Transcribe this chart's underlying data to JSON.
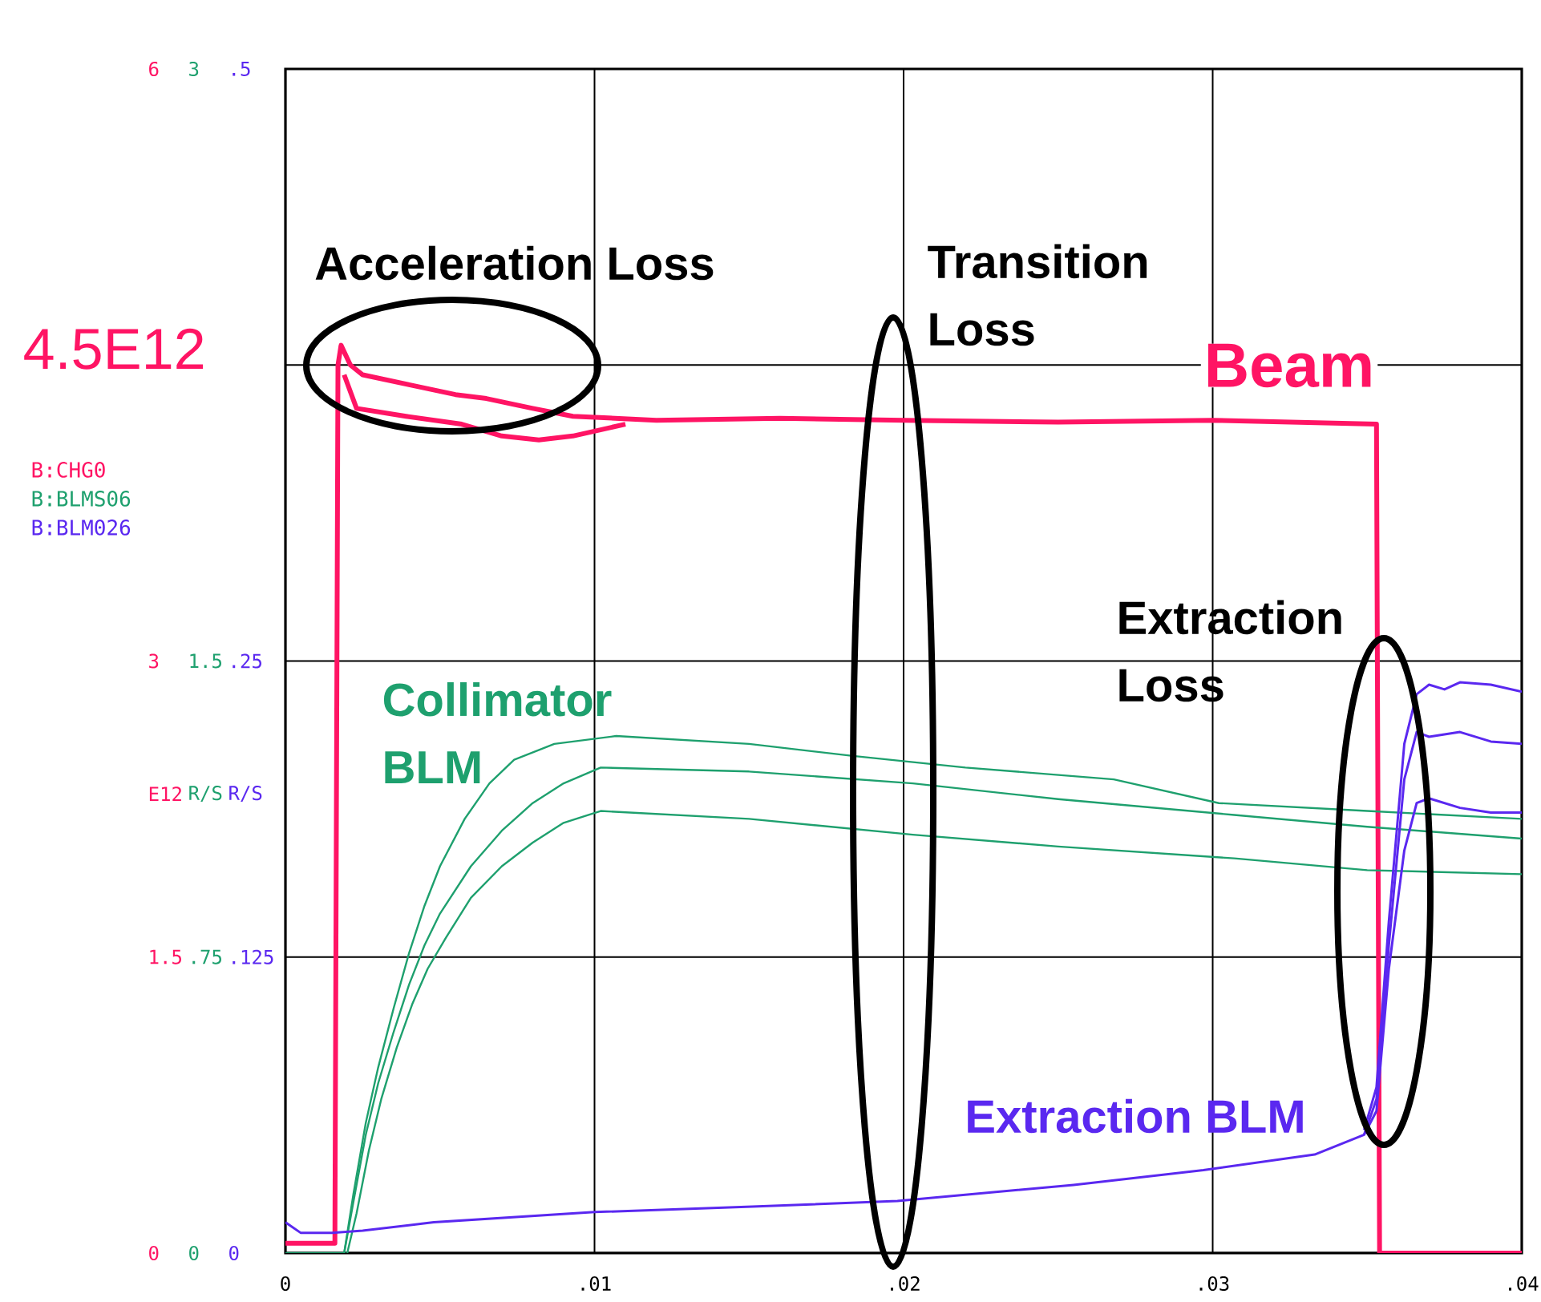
{
  "chart_data": {
    "type": "line",
    "xlim": [
      0,
      0.04
    ],
    "xticks": [
      0,
      {
        "value": 0.01,
        "label": ".01"
      },
      {
        "value": 0.02,
        "label": ".02"
      },
      {
        "value": 0.03,
        "label": ".03"
      },
      {
        "value": 0.04,
        "label": ".04"
      }
    ],
    "ylim": [
      0,
      6
    ],
    "yticks": [
      0,
      1.5,
      3,
      6
    ],
    "y2lim": [
      0,
      3
    ],
    "y2ticks": [
      0,
      {
        "value": 0.75,
        "label": ".75"
      },
      1.5,
      3
    ],
    "y3lim": [
      0,
      0.5
    ],
    "y3ticks": [
      0,
      {
        "value": 0.125,
        "label": ".125"
      },
      {
        "value": 0.25,
        "label": ".25"
      },
      {
        "value": 0.5,
        "label": ".5"
      }
    ],
    "ylabel": "E12",
    "y2label": "R/S",
    "y3label": "R/S",
    "grid": true,
    "legend": "left",
    "ref_lines": [
      {
        "axis": "y",
        "value": 4.5,
        "label": "4.5E12"
      }
    ],
    "series": [
      {
        "name": "B:CHG0",
        "color": "#ff1464",
        "x": [
          0,
          0.0016,
          0.0017,
          0.0018,
          0.0021,
          0.0025,
          0.004,
          0.0055,
          0.0065,
          0.008,
          0.0093,
          0.012,
          0.016,
          0.02,
          0.025,
          0.03,
          0.0353,
          0.0354,
          0.04
        ],
        "values": [
          0.05,
          0.05,
          4.5,
          4.6,
          4.5,
          4.45,
          4.4,
          4.35,
          4.33,
          4.28,
          4.24,
          4.22,
          4.23,
          4.22,
          4.21,
          4.22,
          4.2,
          0,
          0
        ]
      },
      {
        "color": "#ff1464",
        "x": [
          0.0019,
          0.0023,
          0.0039,
          0.0057,
          0.007,
          0.0082,
          0.0093,
          0.011
        ],
        "values": [
          4.45,
          4.28,
          4.24,
          4.2,
          4.14,
          4.12,
          4.14,
          4.2
        ]
      },
      {
        "name": "B:BLMS06",
        "color": "#1ea06e",
        "axis": "y2",
        "x": [
          0,
          0.0019,
          0.0022,
          0.0026,
          0.003,
          0.0035,
          0.004,
          0.0045,
          0.005,
          0.006,
          0.007,
          0.008,
          0.009,
          0.0102,
          0.015,
          0.0203,
          0.025,
          0.0307,
          0.035,
          0.04
        ],
        "values": [
          0,
          0,
          0.13,
          0.3,
          0.43,
          0.56,
          0.68,
          0.78,
          0.86,
          0.98,
          1.07,
          1.14,
          1.19,
          1.23,
          1.22,
          1.19,
          1.15,
          1.11,
          1.08,
          1.05
        ]
      },
      {
        "color": "#1ea06e",
        "axis": "y2",
        "x": [
          0.0019,
          0.0022,
          0.0026,
          0.003,
          0.0035,
          0.004,
          0.0045,
          0.005,
          0.0058,
          0.0066,
          0.0074,
          0.0087,
          0.0107,
          0.015,
          0.0183,
          0.022,
          0.0268,
          0.0302,
          0.035,
          0.04
        ],
        "values": [
          0,
          0.15,
          0.33,
          0.47,
          0.62,
          0.76,
          0.88,
          0.98,
          1.1,
          1.19,
          1.25,
          1.29,
          1.31,
          1.29,
          1.26,
          1.23,
          1.2,
          1.14,
          1.12,
          1.1
        ]
      },
      {
        "color": "#1ea06e",
        "axis": "y2",
        "x": [
          0.002,
          0.0023,
          0.0027,
          0.0031,
          0.0036,
          0.0041,
          0.0046,
          0.0052,
          0.006,
          0.007,
          0.008,
          0.009,
          0.0102,
          0.015,
          0.0203,
          0.025,
          0.0307,
          0.035,
          0.04
        ],
        "values": [
          0,
          0.1,
          0.26,
          0.39,
          0.52,
          0.63,
          0.72,
          0.8,
          0.9,
          0.98,
          1.04,
          1.09,
          1.12,
          1.1,
          1.06,
          1.03,
          1.0,
          0.97,
          0.96
        ]
      },
      {
        "name": "B:BLM026",
        "color": "#5a28f0",
        "axis": "y3",
        "x": [
          0,
          0.0005,
          0.0015,
          0.0025,
          0.0048,
          0.01,
          0.0151,
          0.0198,
          0.0255,
          0.0297,
          0.0333,
          0.0349,
          0.0353,
          0.0357,
          0.0362,
          0.0366,
          0.037,
          0.038,
          0.039,
          0.04
        ],
        "values": [
          0.013,
          0.0085,
          0.0085,
          0.0095,
          0.013,
          0.0173,
          0.0196,
          0.022,
          0.0288,
          0.035,
          0.0416,
          0.05,
          0.06,
          0.12,
          0.17,
          0.19,
          0.192,
          0.188,
          0.186,
          0.186
        ]
      },
      {
        "color": "#5a28f0",
        "axis": "y3",
        "x": [
          0.0349,
          0.0353,
          0.0357,
          0.0362,
          0.0366,
          0.037,
          0.038,
          0.039,
          0.04
        ],
        "values": [
          0.05,
          0.065,
          0.13,
          0.2,
          0.22,
          0.218,
          0.22,
          0.216,
          0.215
        ]
      },
      {
        "color": "#5a28f0",
        "axis": "y3",
        "x": [
          0.0349,
          0.0353,
          0.0357,
          0.0362,
          0.0366,
          0.037,
          0.0375,
          0.038,
          0.039,
          0.04
        ],
        "values": [
          0.052,
          0.07,
          0.14,
          0.215,
          0.236,
          0.24,
          0.238,
          0.241,
          0.24,
          0.237
        ]
      }
    ],
    "annotations": [
      "Acceleration Loss",
      "Transition Loss",
      "Extraction Loss",
      "Beam",
      "Collimator BLM",
      "Extraction BLM"
    ]
  }
}
